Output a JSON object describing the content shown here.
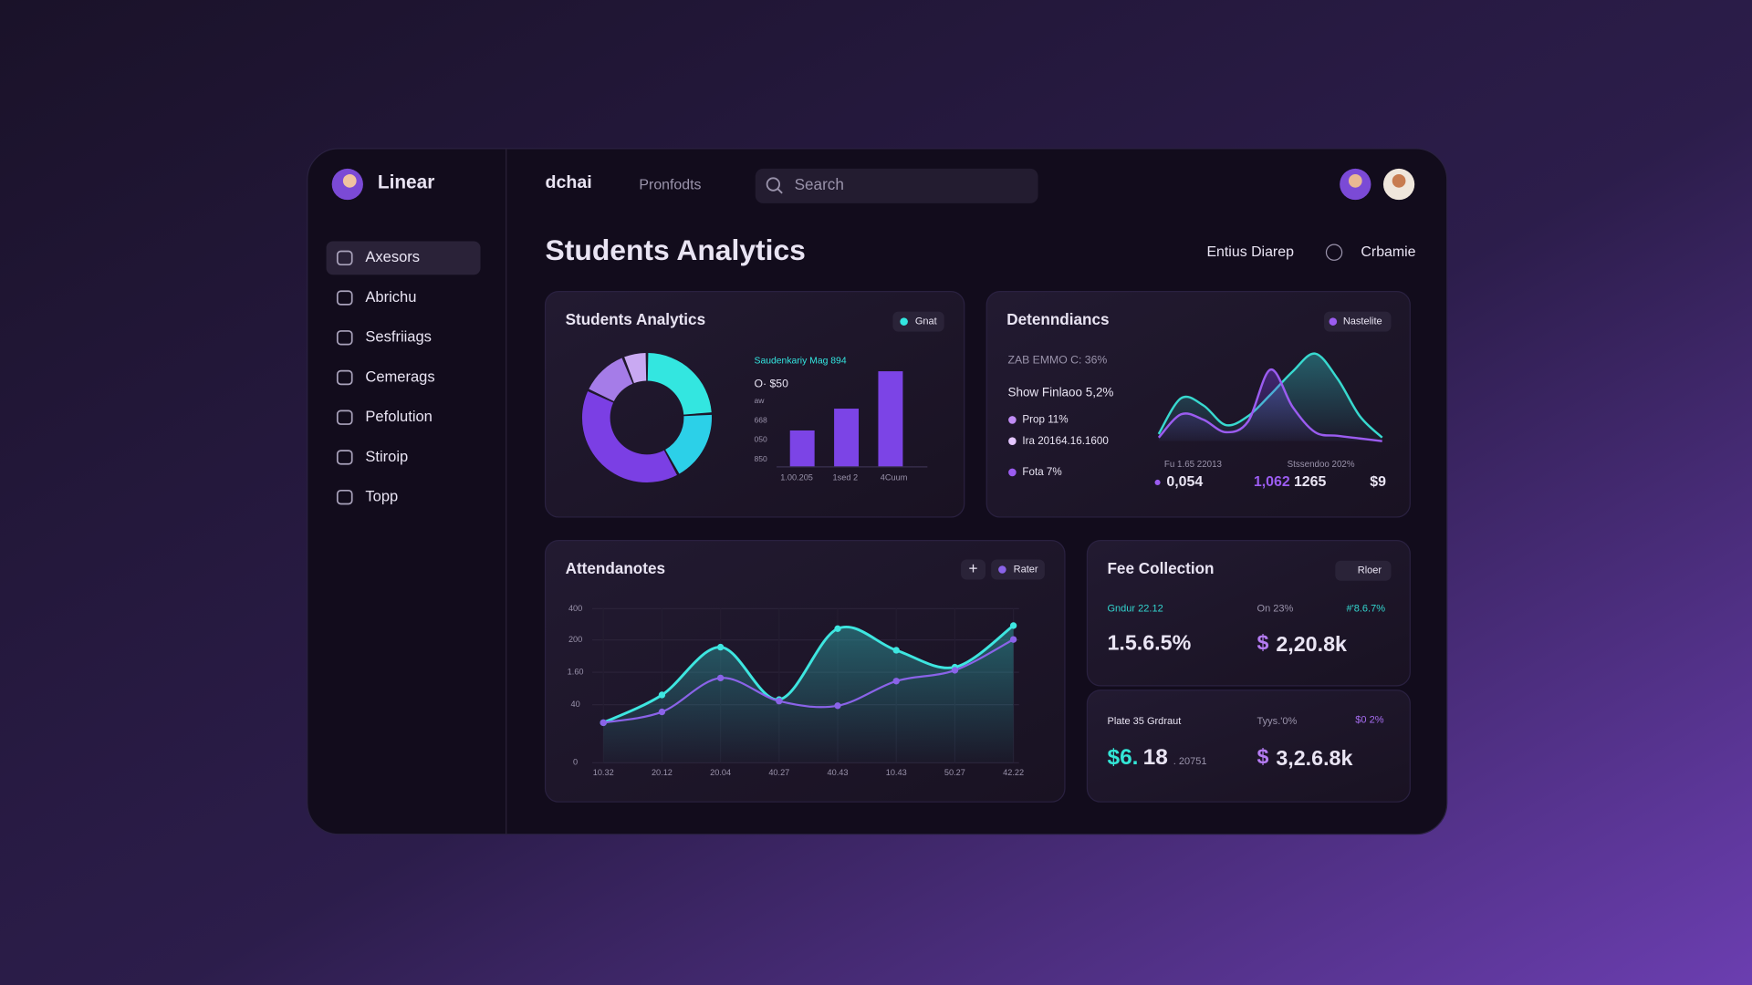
{
  "sidebar": {
    "brand": "Linear",
    "active_item": 0,
    "nav": [
      "Axesors",
      "Abrichu",
      "Sesfriiags",
      "Cemerags",
      "Pefolution",
      "Stiroip",
      "Topp"
    ]
  },
  "header": {
    "logo": "dchai",
    "link": "Pronfodts",
    "search_placeholder": "Search"
  },
  "page": {
    "title": "Students Analytics",
    "actions": [
      "Entius Diarep",
      "Crbamie"
    ]
  },
  "students_card": {
    "title": "Students Analytics",
    "badge": "Gnat",
    "donut": {
      "type": "pie",
      "values": [
        24,
        18,
        40,
        12,
        6
      ],
      "colors": [
        "#33e6e0",
        "#2cd0e8",
        "#7b3fe4",
        "#a57ce8",
        "#c9a9f2"
      ]
    },
    "bars": {
      "type": "bar",
      "caption": "Saudenkariy Mag 894",
      "value_label": "O· $50",
      "y_labels": [
        "aw",
        "668",
        "050",
        "850"
      ],
      "categories": [
        "1.00.205",
        "1sed 2",
        "4Cuum"
      ],
      "values": [
        35,
        56,
        92
      ],
      "ylim": [
        0,
        100
      ],
      "color": "#7c44e6"
    }
  },
  "deten_card": {
    "title": "Detenndiancs",
    "badge": "Nastelite",
    "stat_line": "ZAB EMMO C: 36%",
    "highlight": "Show Finlaoo 5,2%",
    "legend": [
      "Prop 11%",
      "Ira 20164.16.1600",
      "Fota 7%"
    ],
    "chart": {
      "type": "area",
      "ylim": [
        0,
        100
      ],
      "series": [
        {
          "color": "#38d9cf",
          "values": [
            8,
            48,
            40,
            18,
            28,
            52,
            78,
            98,
            70,
            28,
            4
          ]
        },
        {
          "color": "#9b5cf0",
          "values": [
            4,
            30,
            24,
            10,
            22,
            80,
            38,
            10,
            6,
            3,
            0
          ]
        }
      ]
    },
    "footer_labels": [
      "Fu 1.65 22013",
      "Stssendoo 202%"
    ],
    "footer_values": [
      "0,054",
      "1,062",
      "1265",
      "$9"
    ]
  },
  "attendance_card": {
    "title": "Attendanotes",
    "add_button": "+",
    "badge": "Rater",
    "chart": {
      "type": "line",
      "ylim": [
        0,
        100
      ],
      "y_labels": [
        "400",
        "200",
        "1.60",
        "40",
        "0"
      ],
      "categories": [
        "10.32",
        "20.12",
        "20.04",
        "40.27",
        "40.43",
        "10.43",
        "50.27",
        "42.22"
      ],
      "series": [
        {
          "color": "#3ee6e0",
          "values": [
            26,
            44,
            75,
            41,
            87,
            73,
            62,
            89
          ]
        },
        {
          "color": "#8a63e8",
          "values": [
            26,
            33,
            55,
            40,
            37,
            53,
            60,
            80
          ]
        }
      ]
    }
  },
  "fee_card": {
    "title": "Fee Collection",
    "badge": "Rloer",
    "top": {
      "label_a": "Gndur 22.12",
      "label_b": "On 23%",
      "label_c": "#'8.6.7%",
      "value_a": "1.5.6.5%",
      "symbol_b": "$",
      "value_b": "2,20.8k"
    },
    "bottom": {
      "label_a": "Plate 35 Grdraut",
      "label_b": "Tyys.'0%",
      "label_c": "$0 2%",
      "prefix_a": "$6.",
      "value_a": "18",
      "suffix_a": ". 20751",
      "symbol_b": "$",
      "value_b": "3,2.6.8k"
    }
  }
}
